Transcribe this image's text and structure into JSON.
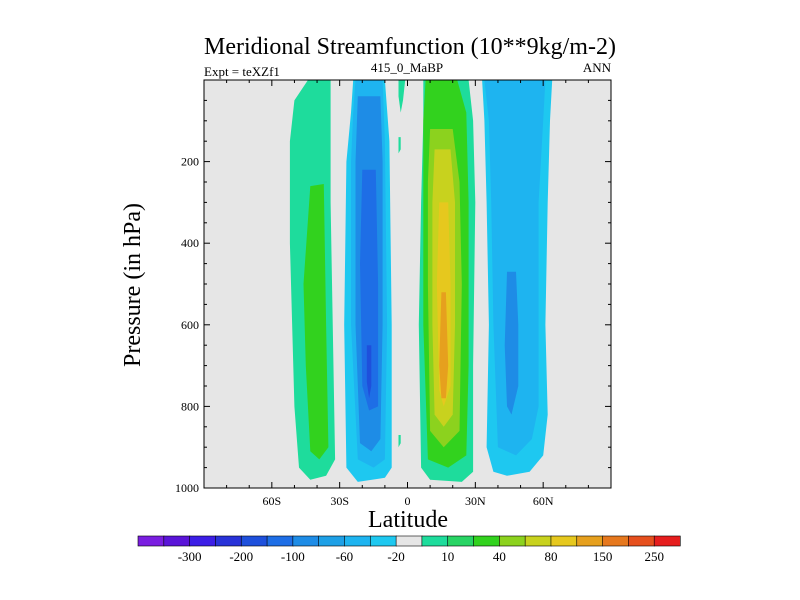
{
  "chart_data": {
    "type": "heatmap",
    "title": "Meridional Streamfunction (10**9kg/m-2)",
    "subtitle_left": "Expt = teXZf1",
    "subtitle_center": "415_0_MaBP",
    "subtitle_right": "ANN",
    "xlabel": "Latitude",
    "ylabel": "Pressure (in hPa)",
    "xlim": [
      -90,
      90
    ],
    "ylim": [
      1000,
      0
    ],
    "x_ticks": [
      {
        "value": -60,
        "label": "60S"
      },
      {
        "value": -30,
        "label": "30S"
      },
      {
        "value": 0,
        "label": "0"
      },
      {
        "value": 30,
        "label": "30N"
      },
      {
        "value": 60,
        "label": "60N"
      }
    ],
    "y_ticks": [
      {
        "value": 200,
        "label": "200"
      },
      {
        "value": 400,
        "label": "400"
      },
      {
        "value": 600,
        "label": "600"
      },
      {
        "value": 800,
        "label": "800"
      },
      {
        "value": 1000,
        "label": "1000"
      }
    ],
    "contour_levels": [
      -300,
      -250,
      -200,
      -150,
      -100,
      -80,
      -60,
      -40,
      -20,
      -10,
      10,
      20,
      40,
      60,
      80,
      100,
      150,
      200,
      250,
      300
    ],
    "colorbar_colors": [
      "#7a1ee0",
      "#5a14d8",
      "#3c1ee6",
      "#2832d8",
      "#1e50dc",
      "#1e6ee6",
      "#1e8ce6",
      "#1ea0e6",
      "#1eb4f0",
      "#1ec8f0",
      "#e6e6e6",
      "#1edc9c",
      "#28d464",
      "#32d21e",
      "#8cd21e",
      "#c8d21e",
      "#e6c81e",
      "#e6a01e",
      "#e6781e",
      "#e6501e",
      "#e61e1e"
    ],
    "colorbar_labels": [
      {
        "after_index": 1,
        "text": "-300"
      },
      {
        "after_index": 3,
        "text": "-200"
      },
      {
        "after_index": 5,
        "text": "-100"
      },
      {
        "after_index": 7,
        "text": "-60"
      },
      {
        "after_index": 9,
        "text": "-20"
      },
      {
        "after_index": 11,
        "text": "10"
      },
      {
        "after_index": 13,
        "text": "40"
      },
      {
        "after_index": 15,
        "text": "80"
      },
      {
        "after_index": 17,
        "text": "150"
      },
      {
        "after_index": 19,
        "text": "250"
      }
    ],
    "cells": [
      {
        "name": "sh-outer-cell",
        "value": 15,
        "color": "#1edc9c",
        "poly": [
          [
            -44,
            0
          ],
          [
            -34,
            0
          ],
          [
            -34,
            300
          ],
          [
            -32,
            930
          ],
          [
            -36,
            970
          ],
          [
            -43,
            980
          ],
          [
            -48,
            950
          ],
          [
            -50,
            800
          ],
          [
            -52,
            400
          ],
          [
            -52,
            150
          ],
          [
            -50,
            50
          ]
        ]
      },
      {
        "name": "sh-outer-cell-core",
        "value": 30,
        "color": "#32d21e",
        "poly": [
          [
            -43,
            260
          ],
          [
            -37,
            255
          ],
          [
            -36,
            600
          ],
          [
            -35,
            900
          ],
          [
            -39,
            930
          ],
          [
            -43,
            910
          ],
          [
            -45,
            700
          ],
          [
            -46,
            500
          ]
        ]
      },
      {
        "name": "sh-hadley-cell",
        "value": -15,
        "color": "#1ec8f0",
        "poly": [
          [
            -24,
            0
          ],
          [
            -10,
            0
          ],
          [
            -8,
            150
          ],
          [
            -7,
            600
          ],
          [
            -7,
            950
          ],
          [
            -10,
            975
          ],
          [
            -22,
            985
          ],
          [
            -27,
            950
          ],
          [
            -28,
            600
          ],
          [
            -27,
            200
          ],
          [
            -25,
            80
          ]
        ]
      },
      {
        "name": "sh-hadley-cell-l2",
        "value": -30,
        "color": "#1eb4f0",
        "poly": [
          [
            -23,
            0
          ],
          [
            -11,
            0
          ],
          [
            -10,
            150
          ],
          [
            -9,
            600
          ],
          [
            -10,
            930
          ],
          [
            -15,
            950
          ],
          [
            -22,
            930
          ],
          [
            -25,
            600
          ],
          [
            -25,
            200
          ],
          [
            -24,
            80
          ]
        ]
      },
      {
        "name": "sh-hadley-cell-l3",
        "value": -50,
        "color": "#1e8ce6",
        "poly": [
          [
            -22,
            40
          ],
          [
            -12,
            40
          ],
          [
            -11,
            200
          ],
          [
            -11,
            600
          ],
          [
            -12,
            880
          ],
          [
            -16,
            910
          ],
          [
            -21,
            890
          ],
          [
            -23,
            600
          ],
          [
            -23,
            200
          ]
        ]
      },
      {
        "name": "sh-hadley-cell-l4",
        "value": -70,
        "color": "#1e6ee6",
        "poly": [
          [
            -20,
            220
          ],
          [
            -14,
            220
          ],
          [
            -13,
            500
          ],
          [
            -13,
            800
          ],
          [
            -17,
            810
          ],
          [
            -20,
            750
          ],
          [
            -21,
            450
          ]
        ]
      },
      {
        "name": "sh-hadley-cell-core",
        "value": -90,
        "color": "#1e50dc",
        "poly": [
          [
            -18,
            650
          ],
          [
            -16,
            650
          ],
          [
            -16,
            750
          ],
          [
            -17,
            780
          ],
          [
            -18,
            740
          ]
        ]
      },
      {
        "name": "equatorial-filament",
        "value": 15,
        "color": "#1edc9c",
        "poly": [
          [
            -4,
            0
          ],
          [
            -1,
            0
          ],
          [
            -2,
            50
          ],
          [
            -3,
            80
          ],
          [
            -4,
            40
          ]
        ]
      },
      {
        "name": "equatorial-filament-2",
        "value": 15,
        "color": "#1edc9c",
        "poly": [
          [
            -4,
            140
          ],
          [
            -3,
            140
          ],
          [
            -3,
            170
          ],
          [
            -4,
            180
          ]
        ]
      },
      {
        "name": "equatorial-filament-3",
        "value": 15,
        "color": "#1edc9c",
        "poly": [
          [
            -4,
            870
          ],
          [
            -3,
            870
          ],
          [
            -3,
            890
          ],
          [
            -4,
            900
          ]
        ]
      },
      {
        "name": "nh-hadley-cell",
        "value": 15,
        "color": "#1edc9c",
        "poly": [
          [
            7,
            0
          ],
          [
            27,
            0
          ],
          [
            29,
            100
          ],
          [
            30,
            300
          ],
          [
            29,
            700
          ],
          [
            29,
            960
          ],
          [
            24,
            985
          ],
          [
            10,
            980
          ],
          [
            6,
            950
          ],
          [
            5,
            600
          ],
          [
            6,
            300
          ],
          [
            7,
            100
          ]
        ]
      },
      {
        "name": "nh-hadley-cell-l2",
        "value": 30,
        "color": "#32d21e",
        "poly": [
          [
            8,
            0
          ],
          [
            22,
            0
          ],
          [
            26,
            80
          ],
          [
            27,
            300
          ],
          [
            27,
            700
          ],
          [
            26,
            920
          ],
          [
            18,
            950
          ],
          [
            9,
            930
          ],
          [
            7,
            600
          ],
          [
            7,
            300
          ],
          [
            7,
            100
          ]
        ]
      },
      {
        "name": "nh-hadley-cell-l3",
        "value": 60,
        "color": "#8cd21e",
        "poly": [
          [
            10,
            120
          ],
          [
            20,
            120
          ],
          [
            23,
            250
          ],
          [
            24,
            500
          ],
          [
            23,
            860
          ],
          [
            16,
            900
          ],
          [
            10,
            860
          ],
          [
            9,
            500
          ],
          [
            9,
            250
          ]
        ]
      },
      {
        "name": "nh-hadley-cell-l4",
        "value": 80,
        "color": "#c8d21e",
        "poly": [
          [
            12,
            170
          ],
          [
            19,
            170
          ],
          [
            21,
            300
          ],
          [
            21,
            600
          ],
          [
            20,
            820
          ],
          [
            16,
            850
          ],
          [
            12,
            820
          ],
          [
            11,
            600
          ],
          [
            11,
            300
          ]
        ]
      },
      {
        "name": "nh-hadley-cell-l5",
        "value": 110,
        "color": "#e6c81e",
        "poly": [
          [
            14,
            300
          ],
          [
            18,
            300
          ],
          [
            19,
            500
          ],
          [
            19,
            750
          ],
          [
            16,
            800
          ],
          [
            14,
            760
          ],
          [
            13,
            500
          ]
        ]
      },
      {
        "name": "nh-hadley-cell-core",
        "value": 130,
        "color": "#e6a01e",
        "poly": [
          [
            15,
            520
          ],
          [
            17,
            520
          ],
          [
            18,
            700
          ],
          [
            17,
            780
          ],
          [
            15,
            780
          ],
          [
            14,
            700
          ]
        ]
      },
      {
        "name": "nh-outer-cell",
        "value": -15,
        "color": "#1ec8f0",
        "poly": [
          [
            33,
            0
          ],
          [
            64,
            0
          ],
          [
            63,
            100
          ],
          [
            62,
            300
          ],
          [
            61,
            600
          ],
          [
            62,
            820
          ],
          [
            60,
            920
          ],
          [
            54,
            960
          ],
          [
            44,
            970
          ],
          [
            38,
            960
          ],
          [
            35,
            900
          ],
          [
            36,
            600
          ],
          [
            35,
            300
          ],
          [
            34,
            100
          ]
        ]
      },
      {
        "name": "nh-outer-cell-l2",
        "value": -30,
        "color": "#1eb4f0",
        "poly": [
          [
            34,
            0
          ],
          [
            61,
            0
          ],
          [
            60,
            100
          ],
          [
            58,
            300
          ],
          [
            58,
            600
          ],
          [
            58,
            800
          ],
          [
            55,
            880
          ],
          [
            48,
            920
          ],
          [
            40,
            900
          ],
          [
            38,
            600
          ],
          [
            37,
            300
          ],
          [
            36,
            100
          ]
        ]
      },
      {
        "name": "nh-outer-cell-core",
        "value": -45,
        "color": "#1e8ce6",
        "poly": [
          [
            44,
            470
          ],
          [
            48,
            470
          ],
          [
            49,
            600
          ],
          [
            49,
            750
          ],
          [
            46,
            820
          ],
          [
            44,
            800
          ],
          [
            43,
            650
          ]
        ]
      }
    ]
  }
}
